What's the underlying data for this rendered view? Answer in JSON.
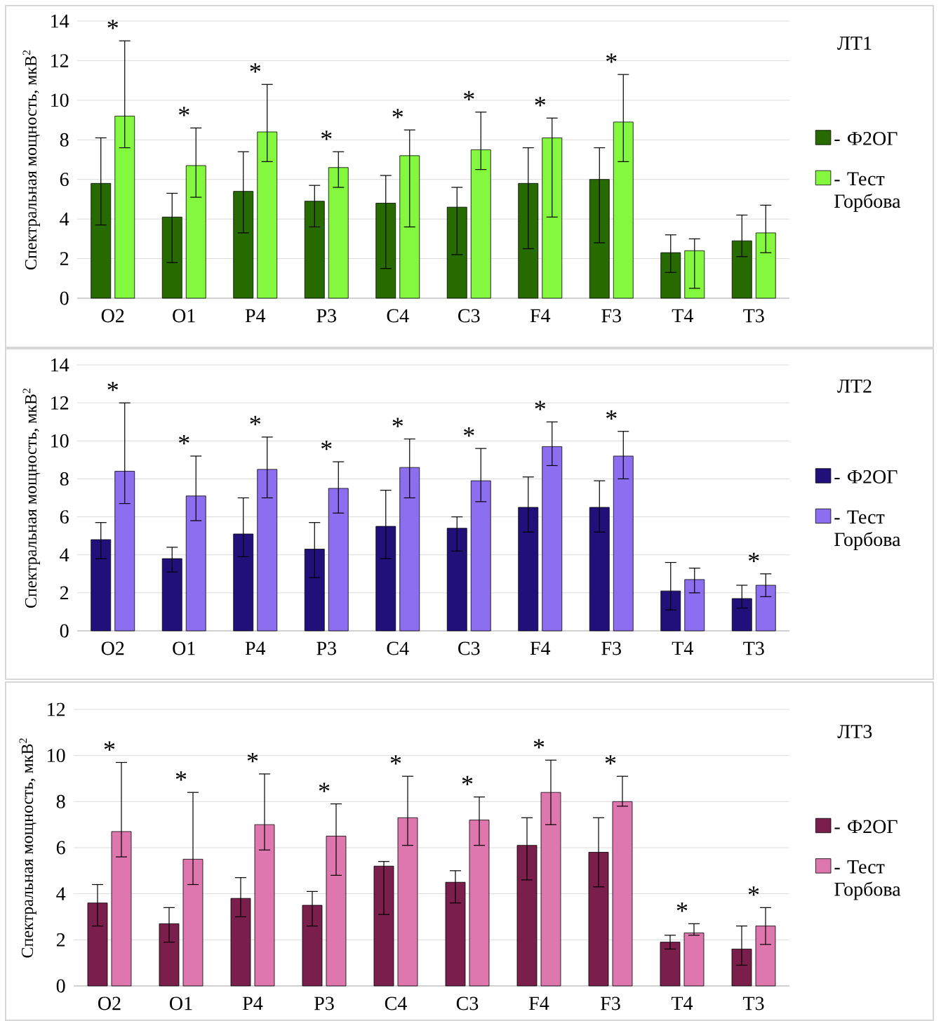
{
  "chart_data": [
    {
      "type": "bar",
      "ylabel": "Спектральная мощность, мкВ$^{2}$",
      "categories": [
        "O2",
        "O1",
        "P4",
        "P3",
        "C4",
        "C3",
        "F4",
        "F3",
        "T4",
        "T3"
      ],
      "series": [
        {
          "name": "- Ф2ОГ",
          "color": "#266a00",
          "values": [
            5.8,
            4.1,
            5.4,
            4.9,
            4.8,
            4.6,
            5.8,
            6.0,
            2.3,
            2.9
          ],
          "errors": [
            [
              3.7,
              8.1
            ],
            [
              1.8,
              5.3
            ],
            [
              3.3,
              7.4
            ],
            [
              3.6,
              5.7
            ],
            [
              1.5,
              6.2
            ],
            [
              2.2,
              5.6
            ],
            [
              2.5,
              7.6
            ],
            [
              2.8,
              7.6
            ],
            [
              1.3,
              3.2
            ],
            [
              2.1,
              4.2
            ]
          ]
        },
        {
          "name": "- Тест Горбова",
          "color": "#84f83f",
          "values": [
            9.2,
            6.7,
            8.4,
            6.6,
            7.2,
            7.5,
            8.1,
            8.9,
            2.4,
            3.3
          ],
          "errors": [
            [
              7.6,
              13.0
            ],
            [
              5.1,
              8.6
            ],
            [
              6.9,
              10.8
            ],
            [
              5.6,
              7.4
            ],
            [
              3.6,
              8.5
            ],
            [
              6.5,
              9.4
            ],
            [
              4.1,
              9.1
            ],
            [
              6.9,
              11.3
            ],
            [
              0.5,
              3.0
            ],
            [
              2.3,
              4.7
            ]
          ]
        }
      ],
      "ylim": [
        0,
        14
      ],
      "yticks": [
        0,
        2,
        4,
        6,
        8,
        10,
        12,
        14
      ],
      "grid": "y",
      "legend": "right",
      "annotations": [
        "ЛТ1",
        "*",
        "*",
        "*",
        "*",
        "*",
        "*",
        "*",
        "*"
      ]
    },
    {
      "type": "bar",
      "ylabel": "Спектральная мощность, мкВ$^{2}$",
      "categories": [
        "O2",
        "O1",
        "P4",
        "P3",
        "C4",
        "C3",
        "F4",
        "F3",
        "T4",
        "T3"
      ],
      "series": [
        {
          "name": "- Ф2ОГ",
          "color": "#21107a",
          "values": [
            4.8,
            3.8,
            5.1,
            4.3,
            5.5,
            5.4,
            6.5,
            6.5,
            2.1,
            1.7
          ],
          "errors": [
            [
              3.8,
              5.7
            ],
            [
              3.1,
              4.4
            ],
            [
              3.9,
              7.0
            ],
            [
              2.8,
              5.7
            ],
            [
              3.8,
              7.4
            ],
            [
              4.2,
              6.0
            ],
            [
              5.2,
              8.1
            ],
            [
              5.2,
              7.9
            ],
            [
              1.1,
              3.6
            ],
            [
              1.2,
              2.4
            ]
          ]
        },
        {
          "name": "- Тест Горбова",
          "color": "#8c6ff0",
          "values": [
            8.4,
            7.1,
            8.5,
            7.5,
            8.6,
            7.9,
            9.7,
            9.2,
            2.7,
            2.4
          ],
          "errors": [
            [
              6.7,
              12.0
            ],
            [
              5.8,
              9.2
            ],
            [
              7.0,
              10.2
            ],
            [
              6.2,
              8.9
            ],
            [
              7.0,
              10.1
            ],
            [
              6.8,
              9.6
            ],
            [
              8.7,
              11.0
            ],
            [
              8.0,
              10.5
            ],
            [
              2.0,
              3.3
            ],
            [
              1.8,
              3.0
            ]
          ]
        }
      ],
      "ylim": [
        0,
        14
      ],
      "yticks": [
        0,
        2,
        4,
        6,
        8,
        10,
        12,
        14
      ],
      "grid": "y",
      "legend": "right",
      "annotations": [
        "ЛТ2",
        "*",
        "*",
        "*",
        "*",
        "*",
        "*",
        "*",
        "*",
        "*"
      ]
    },
    {
      "type": "bar",
      "ylabel": "Спектральная мощность, мкВ$^{2}$",
      "categories": [
        "O2",
        "O1",
        "P4",
        "P3",
        "C4",
        "C3",
        "F4",
        "F3",
        "T4",
        "T3"
      ],
      "series": [
        {
          "name": "- Ф2ОГ",
          "color": "#7a1e4c",
          "values": [
            3.6,
            2.7,
            3.8,
            3.5,
            5.2,
            4.5,
            6.1,
            5.8,
            1.9,
            1.6
          ],
          "errors": [
            [
              2.6,
              4.4
            ],
            [
              1.9,
              3.4
            ],
            [
              3.0,
              4.7
            ],
            [
              2.6,
              4.1
            ],
            [
              3.1,
              5.4
            ],
            [
              3.6,
              5.0
            ],
            [
              4.6,
              7.3
            ],
            [
              4.3,
              7.3
            ],
            [
              1.6,
              2.2
            ],
            [
              0.9,
              2.6
            ]
          ]
        },
        {
          "name": "- Тест Горбова",
          "color": "#dd77ae",
          "values": [
            6.7,
            5.5,
            7.0,
            6.5,
            7.3,
            7.2,
            8.4,
            8.0,
            2.3,
            2.6
          ],
          "errors": [
            [
              5.6,
              9.7
            ],
            [
              4.4,
              8.4
            ],
            [
              5.9,
              9.2
            ],
            [
              4.8,
              7.9
            ],
            [
              6.1,
              9.1
            ],
            [
              6.1,
              8.2
            ],
            [
              7.0,
              9.8
            ],
            [
              7.8,
              9.1
            ],
            [
              2.2,
              2.7
            ],
            [
              1.8,
              3.4
            ]
          ]
        }
      ],
      "ylim": [
        0,
        12
      ],
      "yticks": [
        0,
        2,
        4,
        6,
        8,
        10,
        12
      ],
      "grid": "y",
      "legend": "right",
      "annotations": [
        "ЛТ3",
        "*",
        "*",
        "*",
        "*",
        "*",
        "*",
        "*",
        "*",
        "*",
        "*"
      ]
    }
  ]
}
